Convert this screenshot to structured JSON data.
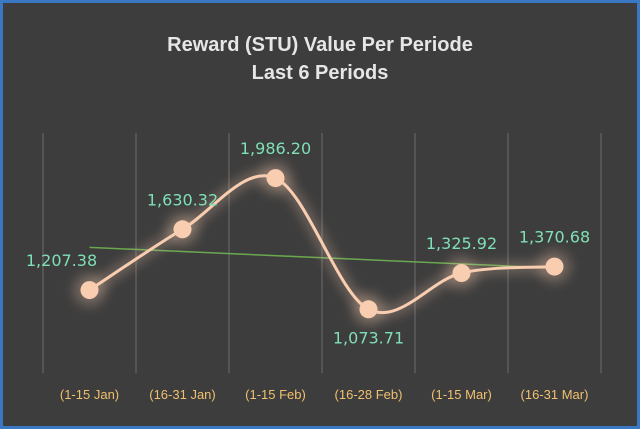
{
  "chart_data": {
    "type": "line",
    "title": "Reward (STU) Value Per Periode",
    "subtitle": "Last 6 Periods",
    "categories": [
      "(1-15 Jan)",
      "(16-31 Jan)",
      "(1-15 Feb)",
      "(16-28 Feb)",
      "(1-15 Mar)",
      "(16-31 Mar)"
    ],
    "series": [
      {
        "values": [
          1207.38,
          1630.32,
          1986.2,
          1073.71,
          1325.92,
          1370.68
        ],
        "labels": [
          "1,207.38",
          "1,630.32",
          "1,986.20",
          "1,073.71",
          "1,325.92",
          "1,370.68"
        ]
      }
    ],
    "trendline": true,
    "ylim": [
      700,
      2300
    ],
    "grid": "vertical",
    "colors": {
      "background": "#3d3d3d",
      "border": "#3b78c4",
      "line": "#f9cdb0",
      "marker": "#f9cdb0",
      "trendline": "#6aa84f",
      "data_label": "#7fe0b6",
      "tick_label": "#f0c070",
      "gridline": "#555555"
    }
  }
}
